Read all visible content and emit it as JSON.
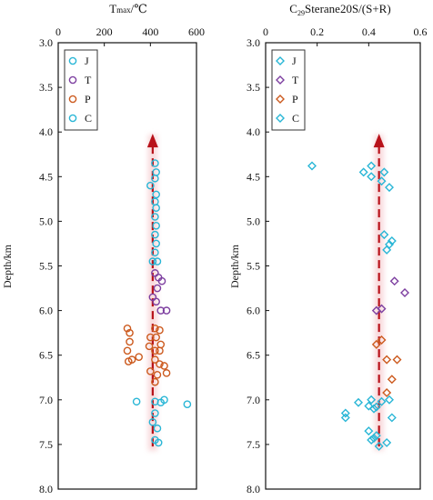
{
  "chart_data": [
    {
      "type": "scatter",
      "title": "Tmax/℃",
      "title_parts": {
        "T": "T",
        "sub": "max",
        "unit": "/℃"
      },
      "xlabel": "Tmax/℃",
      "ylabel": "Depth/km",
      "xlim": [
        0,
        600
      ],
      "ylim": [
        3.0,
        8.0
      ],
      "y_inverted": true,
      "x_axis_position": "top",
      "xticks": [
        "0",
        "200",
        "400",
        "600"
      ],
      "yticks": [
        "3.0",
        "3.5",
        "4.0",
        "4.5",
        "5.0",
        "5.5",
        "6.0",
        "6.5",
        "7.0",
        "7.5",
        "8.0"
      ],
      "legend_placement": "top-left",
      "marker": "circle",
      "trend": {
        "x": 410,
        "y_start": 4.05,
        "y_end": 7.55,
        "style": "dashed-arrow",
        "color": "#b8121a"
      },
      "series": [
        {
          "name": "J",
          "color": "#29b6d6",
          "points": [
            [
              420,
              4.35
            ],
            [
              425,
              4.45
            ],
            [
              420,
              4.52
            ],
            [
              400,
              4.6
            ],
            [
              425,
              4.7
            ],
            [
              420,
              4.78
            ],
            [
              425,
              4.85
            ],
            [
              420,
              4.95
            ],
            [
              425,
              5.05
            ],
            [
              420,
              5.15
            ],
            [
              425,
              5.25
            ],
            [
              420,
              5.35
            ],
            [
              410,
              5.45
            ],
            [
              430,
              5.45
            ]
          ]
        },
        {
          "name": "T",
          "color": "#7d3fa0",
          "points": [
            [
              420,
              5.58
            ],
            [
              435,
              5.63
            ],
            [
              450,
              5.67
            ],
            [
              430,
              5.75
            ],
            [
              410,
              5.85
            ],
            [
              425,
              5.9
            ],
            [
              445,
              6.0
            ],
            [
              470,
              6.0
            ]
          ]
        },
        {
          "name": "P",
          "color": "#cc5a1e",
          "points": [
            [
              300,
              6.2
            ],
            [
              310,
              6.25
            ],
            [
              420,
              6.2
            ],
            [
              440,
              6.22
            ],
            [
              400,
              6.3
            ],
            [
              425,
              6.3
            ],
            [
              310,
              6.35
            ],
            [
              395,
              6.4
            ],
            [
              445,
              6.38
            ],
            [
              300,
              6.45
            ],
            [
              420,
              6.45
            ],
            [
              440,
              6.45
            ],
            [
              350,
              6.52
            ],
            [
              320,
              6.55
            ],
            [
              305,
              6.57
            ],
            [
              420,
              6.55
            ],
            [
              440,
              6.6
            ],
            [
              460,
              6.62
            ],
            [
              400,
              6.68
            ],
            [
              430,
              6.72
            ],
            [
              470,
              6.7
            ],
            [
              420,
              6.8
            ]
          ]
        },
        {
          "name": "C",
          "color": "#29b6d6",
          "points": [
            [
              340,
              7.02
            ],
            [
              420,
              7.02
            ],
            [
              445,
              7.03
            ],
            [
              460,
              7.0
            ],
            [
              560,
              7.05
            ],
            [
              420,
              7.15
            ],
            [
              410,
              7.25
            ],
            [
              430,
              7.32
            ],
            [
              420,
              7.45
            ],
            [
              435,
              7.48
            ]
          ]
        }
      ]
    },
    {
      "type": "scatter",
      "title": "C29Sterane20S/(S+R)",
      "title_parts": {
        "pre": "C",
        "sub": "29",
        "rest": "Sterane20S/(S+R)"
      },
      "xlabel": "C29Sterane20S/(S+R)",
      "ylabel": "Depth/km",
      "xlim": [
        0,
        0.6
      ],
      "ylim": [
        3.0,
        8.0
      ],
      "y_inverted": true,
      "x_axis_position": "top",
      "xticks": [
        "0",
        "0.2",
        "0.4",
        "0.6"
      ],
      "yticks": [
        "3.0",
        "3.5",
        "4.0",
        "4.5",
        "5.0",
        "5.5",
        "6.0",
        "6.5",
        "7.0",
        "7.5",
        "8.0"
      ],
      "legend_placement": "top-left",
      "marker": "diamond",
      "trend": {
        "x": 0.44,
        "y_start": 4.05,
        "y_end": 7.55,
        "style": "dashed-arrow",
        "color": "#b8121a"
      },
      "series": [
        {
          "name": "J",
          "color": "#29b6d6",
          "points": [
            [
              0.18,
              4.38
            ],
            [
              0.41,
              4.38
            ],
            [
              0.38,
              4.45
            ],
            [
              0.46,
              4.45
            ],
            [
              0.41,
              4.5
            ],
            [
              0.45,
              4.55
            ],
            [
              0.48,
              4.62
            ],
            [
              0.46,
              5.15
            ],
            [
              0.49,
              5.22
            ],
            [
              0.48,
              5.26
            ],
            [
              0.47,
              5.32
            ]
          ]
        },
        {
          "name": "T",
          "color": "#7d3fa0",
          "points": [
            [
              0.5,
              5.67
            ],
            [
              0.54,
              5.8
            ],
            [
              0.45,
              5.98
            ],
            [
              0.43,
              6.0
            ]
          ]
        },
        {
          "name": "P",
          "color": "#cc5a1e",
          "points": [
            [
              0.45,
              6.33
            ],
            [
              0.43,
              6.38
            ],
            [
              0.51,
              6.55
            ],
            [
              0.47,
              6.55
            ],
            [
              0.49,
              6.77
            ],
            [
              0.47,
              6.92
            ]
          ]
        },
        {
          "name": "C",
          "color": "#29b6d6",
          "points": [
            [
              0.36,
              7.03
            ],
            [
              0.41,
              7.0
            ],
            [
              0.45,
              7.02
            ],
            [
              0.48,
              7.0
            ],
            [
              0.4,
              7.07
            ],
            [
              0.42,
              7.1
            ],
            [
              0.43,
              7.08
            ],
            [
              0.31,
              7.15
            ],
            [
              0.31,
              7.2
            ],
            [
              0.49,
              7.2
            ],
            [
              0.4,
              7.35
            ],
            [
              0.42,
              7.43
            ],
            [
              0.43,
              7.4
            ],
            [
              0.41,
              7.45
            ],
            [
              0.47,
              7.48
            ],
            [
              0.44,
              7.52
            ]
          ]
        }
      ]
    }
  ]
}
